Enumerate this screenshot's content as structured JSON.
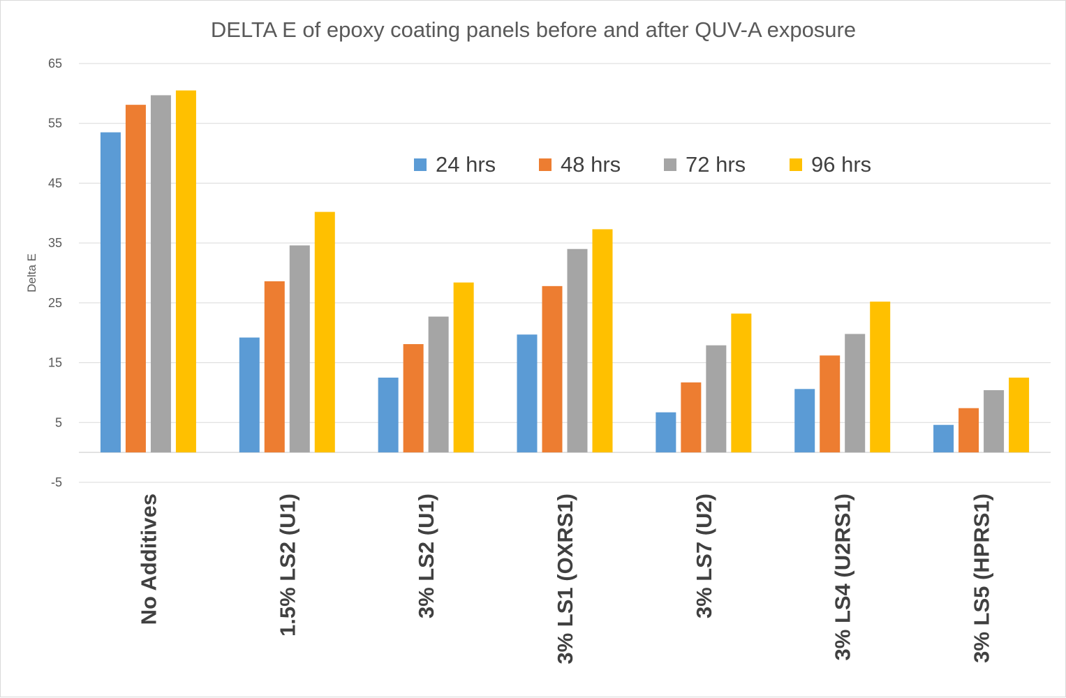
{
  "chart_data": {
    "type": "bar",
    "title": "DELTA E of epoxy coating panels before and after QUV-A exposure",
    "xlabel": "",
    "ylabel": "Delta E",
    "ylim": [
      -5,
      65
    ],
    "yticks": [
      -5,
      5,
      15,
      25,
      35,
      45,
      55,
      65
    ],
    "grid": true,
    "legend_position": "inside-top-center",
    "categories": [
      "No Additives",
      "1.5% LS2 (U1)",
      "3% LS2 (U1)",
      "3% LS1 (OXRS1)",
      "3% LS7 (U2)",
      "3% LS4 (U2RS1)",
      "3% LS5 (HPRS1)"
    ],
    "series": [
      {
        "name": "24 hrs",
        "color": "#5B9BD5",
        "values": [
          53.5,
          19.2,
          12.5,
          19.7,
          6.7,
          10.6,
          4.6
        ]
      },
      {
        "name": "48 hrs",
        "color": "#ED7D31",
        "values": [
          58.1,
          28.6,
          18.1,
          27.8,
          11.7,
          16.2,
          7.4
        ]
      },
      {
        "name": "72 hrs",
        "color": "#A5A5A5",
        "values": [
          59.7,
          34.6,
          22.7,
          34.0,
          17.9,
          19.8,
          10.4
        ]
      },
      {
        "name": "96 hrs",
        "color": "#FFC000",
        "values": [
          60.5,
          40.2,
          28.4,
          37.3,
          23.2,
          25.2,
          12.5
        ]
      }
    ]
  }
}
